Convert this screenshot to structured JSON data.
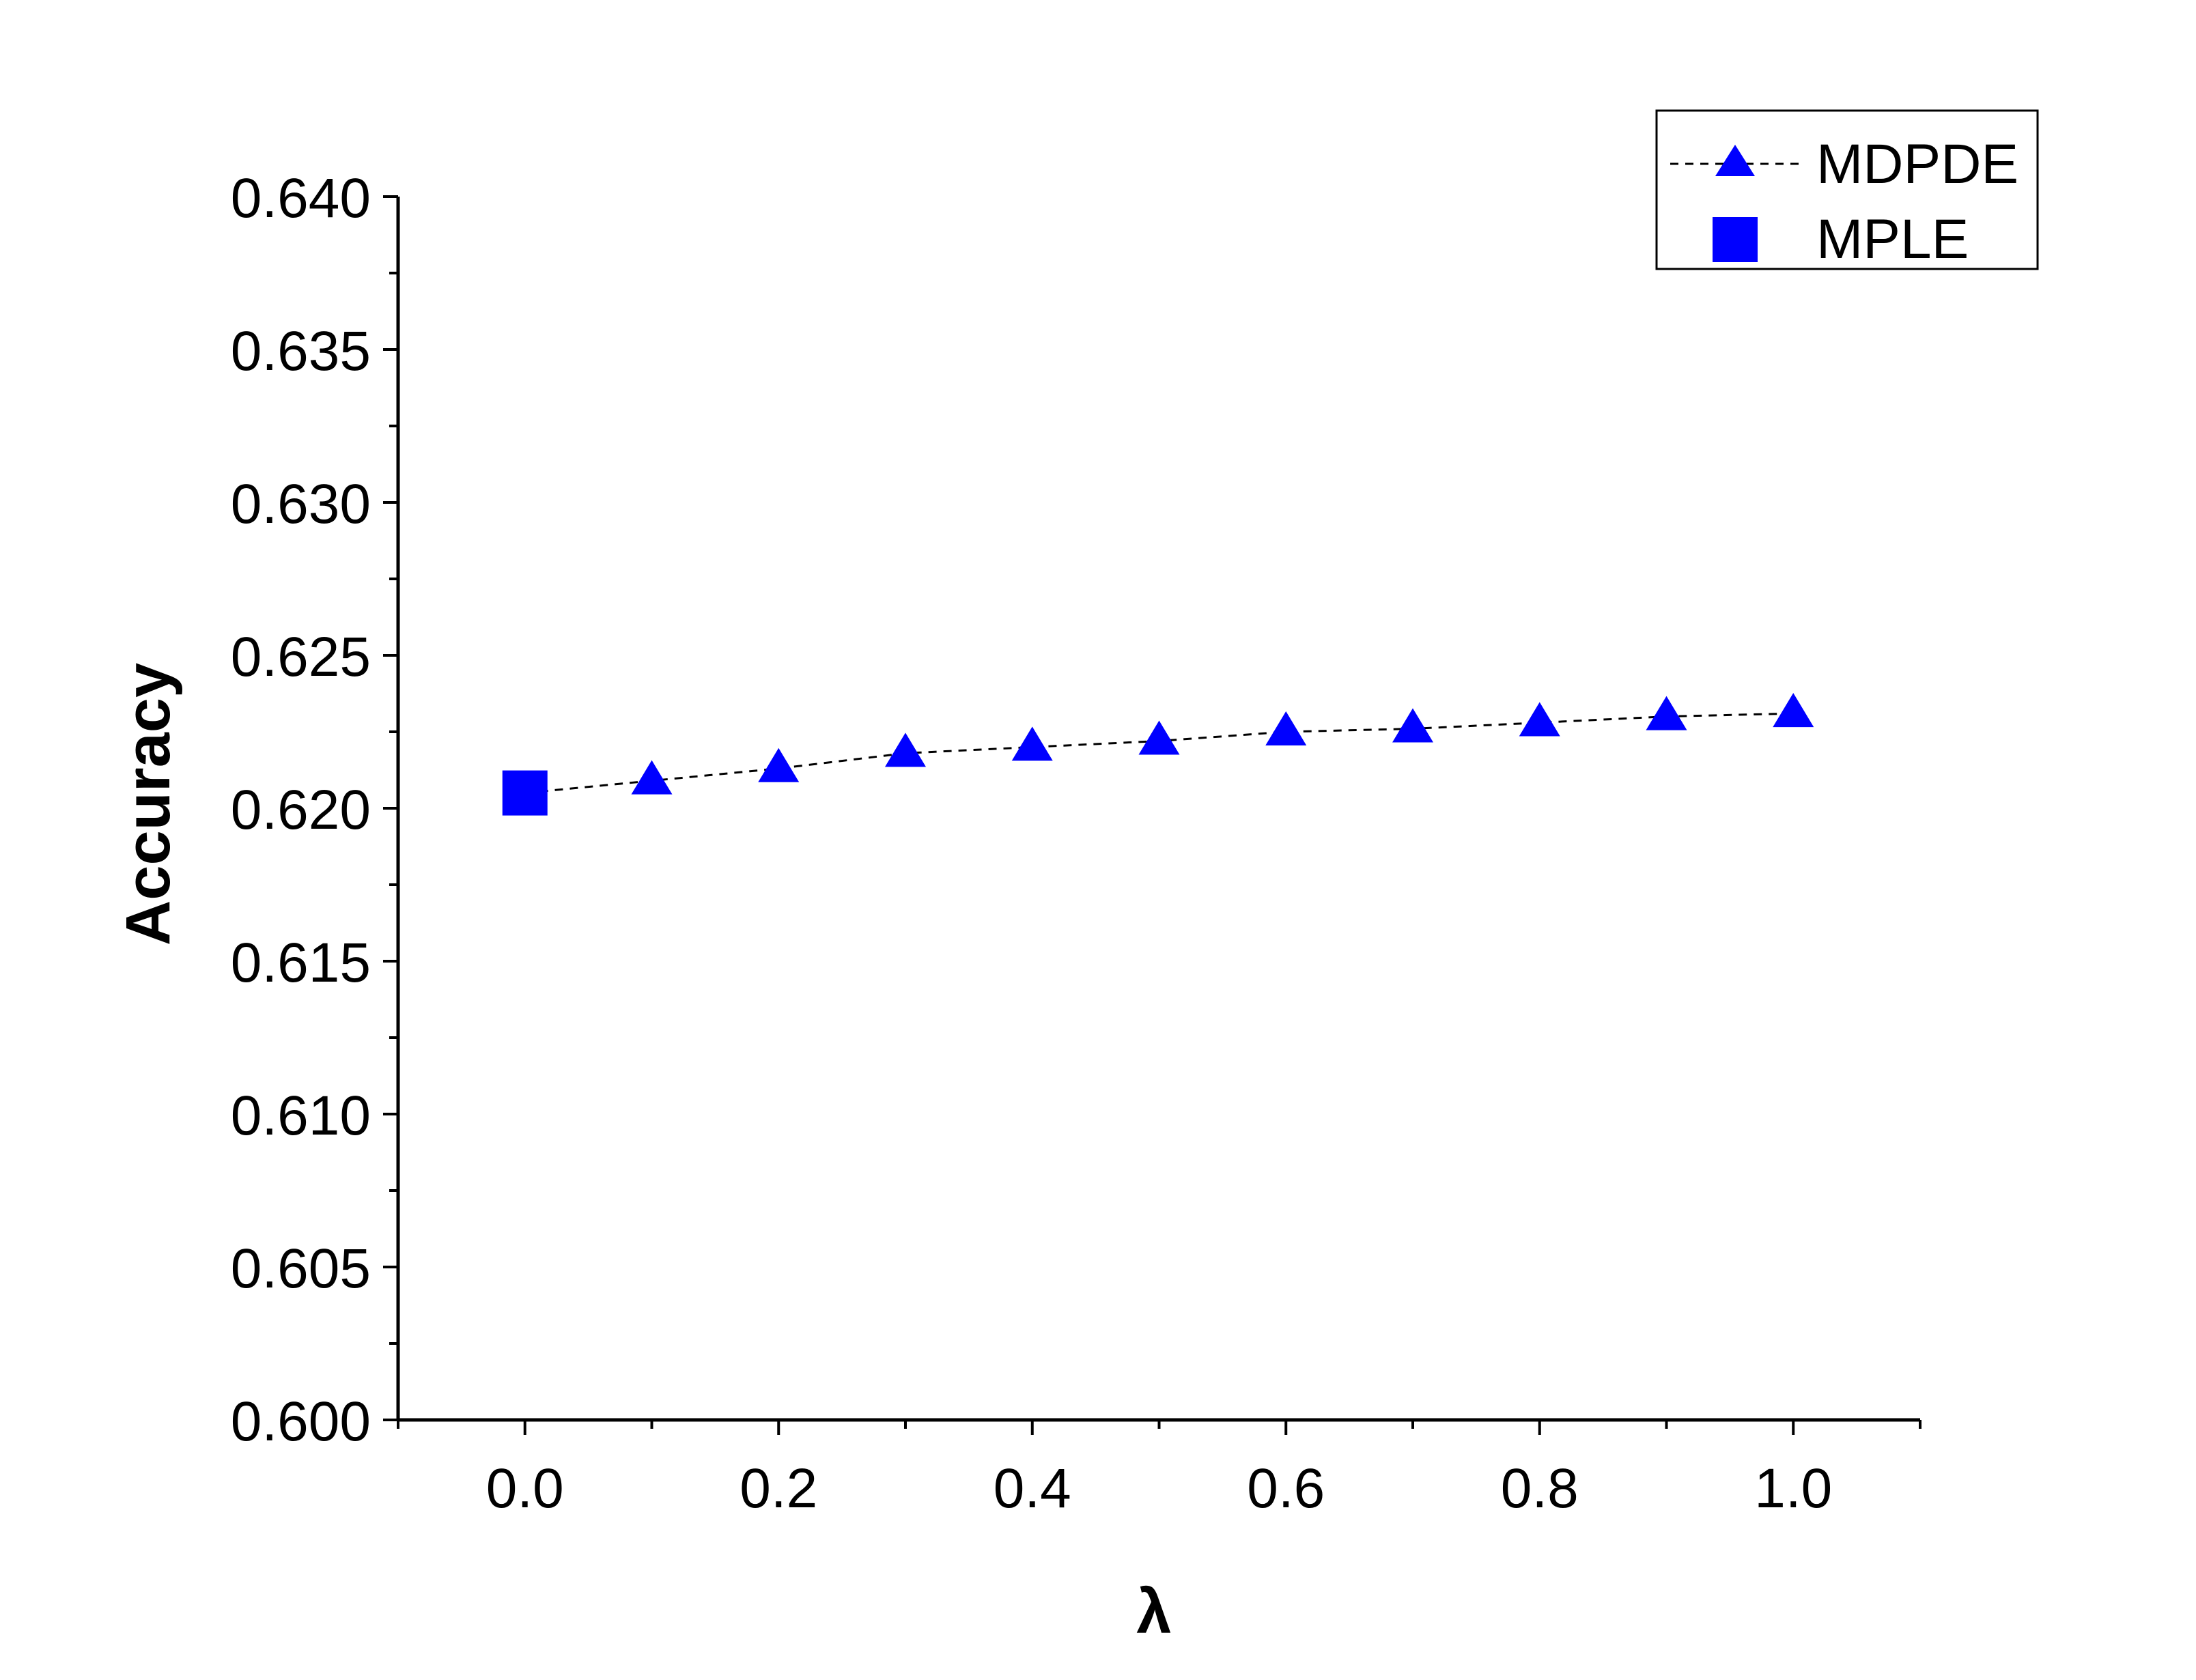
{
  "chart_data": {
    "type": "line",
    "xlabel": "λ",
    "ylabel": "Accuracy",
    "xlim": [
      -0.1,
      1.1
    ],
    "ylim": [
      0.6,
      0.64
    ],
    "x_ticks": [
      "0.0",
      "0.2",
      "0.4",
      "0.6",
      "0.8",
      "1.0"
    ],
    "y_ticks": [
      "0.600",
      "0.605",
      "0.610",
      "0.615",
      "0.620",
      "0.625",
      "0.630",
      "0.635",
      "0.640"
    ],
    "grid": false,
    "legend_position": "top-right",
    "series": [
      {
        "name": "MDPDE",
        "marker": "triangle",
        "line": "dashed",
        "color": "#0000ff",
        "line_color": "#000000",
        "x": [
          0.1,
          0.2,
          0.3,
          0.4,
          0.5,
          0.6,
          0.7,
          0.8,
          0.9,
          1.0
        ],
        "y": [
          0.6209,
          0.6213,
          0.6218,
          0.622,
          0.6222,
          0.6225,
          0.6226,
          0.6228,
          0.623,
          0.6231
        ]
      },
      {
        "name": "MPLE",
        "marker": "square",
        "line": "none",
        "color": "#0000ff",
        "x": [
          0.0
        ],
        "y": [
          0.6205
        ]
      }
    ]
  }
}
